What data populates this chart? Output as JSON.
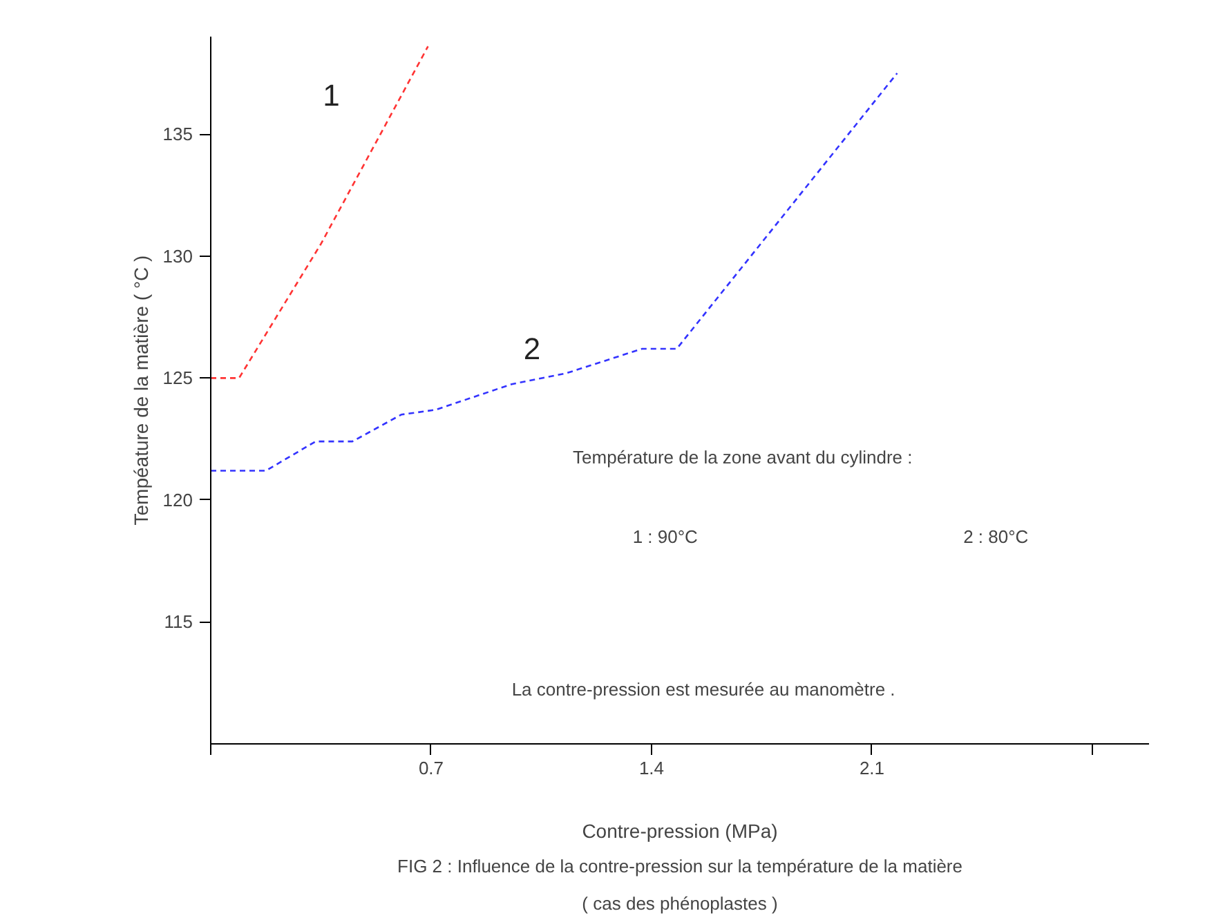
{
  "chart_data": {
    "type": "line",
    "title": "FIG 2 : Influence de la contre-pression sur la température de la matière",
    "subtitle": "( cas des phénoplastes )",
    "xlabel": "Contre-pression (MPa)",
    "ylabel": "Tempéature de la matière ( °C )",
    "xlim": [
      0,
      2.98
    ],
    "ylim": [
      110,
      139
    ],
    "xticks": [
      {
        "value": 0,
        "label": null
      },
      0.7,
      1.4,
      2.1,
      {
        "value": 2.8,
        "label": null
      }
    ],
    "yticks": [
      115,
      120,
      125,
      130,
      135
    ],
    "grid": false,
    "line_style": "dashed",
    "marker": "none",
    "series": [
      {
        "name": "1",
        "color": "#ff3333",
        "x": [
          0,
          0.09,
          0.35,
          0.69
        ],
        "values": [
          125,
          125,
          130.5,
          138.6
        ]
      },
      {
        "name": "2",
        "color": "#3333ff",
        "x": [
          0,
          0.175,
          0.333,
          0.45,
          0.605,
          0.715,
          0.956,
          1.13,
          1.37,
          1.48,
          2.18
        ],
        "values": [
          121.2,
          121.2,
          122.4,
          122.4,
          123.5,
          123.7,
          124.75,
          125.2,
          126.2,
          126.2,
          137.5
        ]
      }
    ],
    "annotations": [
      "Température de la zone avant du cylindre :",
      "1 :    90°C",
      "2 :    80°C",
      "La contre-pression est mesurée au manomètre ."
    ]
  }
}
